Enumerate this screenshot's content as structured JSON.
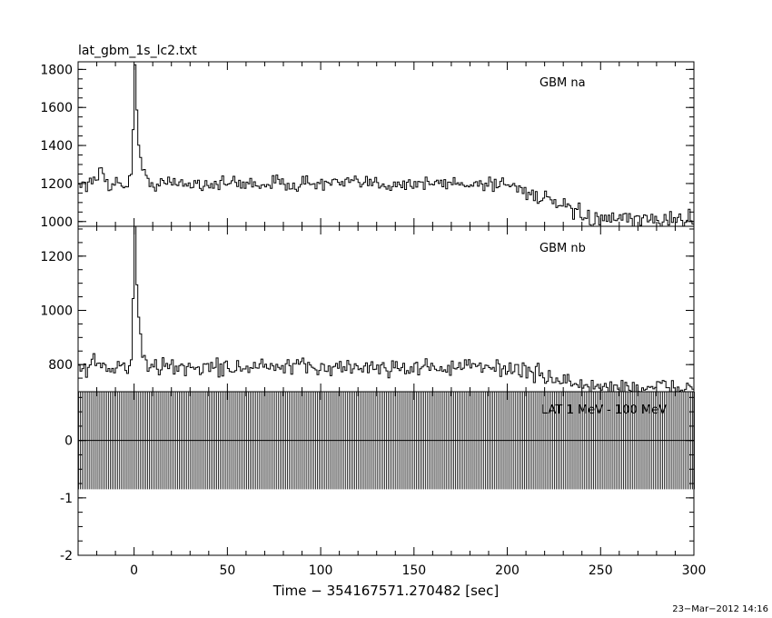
{
  "chart_data": [
    {
      "type": "line",
      "title": "lat_gbm_1s_lc2.txt",
      "series": [
        {
          "name": "GBM na"
        }
      ],
      "xlim": [
        -30,
        300
      ],
      "ylim": [
        975,
        1840
      ],
      "yticks": [
        1000,
        1200,
        1400,
        1600,
        1800
      ],
      "grid": false,
      "baseline": 1200,
      "drift_end": 1010,
      "peak": {
        "x": 0,
        "y": 1840
      },
      "shoulder": {
        "x": -18,
        "y": 1280
      }
    },
    {
      "type": "line",
      "series": [
        {
          "name": "GBM nb"
        }
      ],
      "xlim": [
        -30,
        300
      ],
      "ylim": [
        700,
        1310
      ],
      "yticks": [
        800,
        1000,
        1200
      ],
      "grid": false,
      "baseline": 790,
      "drift_end": 715,
      "peak": {
        "x": 0,
        "y": 1310
      },
      "shoulder": {
        "x": -22,
        "y": 830
      }
    },
    {
      "type": "bar",
      "series": [
        {
          "name": "LAT 1 MeV - 100 MeV"
        }
      ],
      "xlim": [
        -30,
        300
      ],
      "ylim": [
        -2,
        0.85
      ],
      "yticks": [
        0,
        -1,
        -2
      ],
      "grid": false,
      "bar_low": -0.85,
      "bar_high": 0.85,
      "zero_line": 0
    }
  ],
  "xticks": [
    0,
    50,
    100,
    150,
    200,
    250,
    300
  ],
  "xlabel": "Time − 354167571.270482 [sec]",
  "timestamp": "23−Mar−2012 14:16"
}
